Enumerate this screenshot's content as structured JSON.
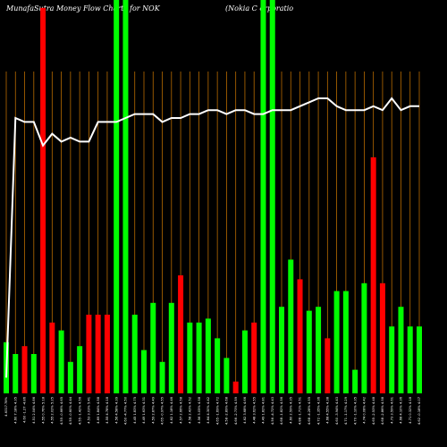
{
  "chart_data": {
    "type": "bar",
    "title_left": "MunafaSutra  Money Flow  Charts for NOK",
    "title_right": "(Nokia  C                                  orporatio",
    "ylim": [
      0,
      100
    ],
    "line_ylim": [
      0,
      100
    ],
    "colors": {
      "up": "#00ff00",
      "down": "#ff0000",
      "vline": "#b86b00",
      "line": "#ffffff",
      "background": "#000000"
    },
    "categories": [
      "4.6317.78%",
      "4.60 7.18% 4.35",
      "4.60 -1.27 -4.86",
      "4.51 2.04% 4.86",
      "4.55 0.76% 5.18",
      "4.55 2.02% 5.25",
      "4.55 -0.66% 4.65",
      "4.55 -0.60% 4.44",
      "4.55 -1.42% 4.56",
      "4.53 3.03% 5.41",
      "4.69 1.84% 4.58",
      "4.55 4.78% 4.18",
      "4.56 4.58% 4.39",
      "4.60 -4.77% 4.50",
      "4.45 1.83% 4.75",
      "4.49 1.63% 4.31",
      "4.59 2.87% 4.49",
      "4.65 -0.97% 4.55",
      "4.62 1.18% 4.46",
      "4.57 2.66% 4.58",
      "4.58 2.43% 4.52",
      "4.56 3.05% 4.58",
      "4.64 4.30% 4.42",
      "4.65 -1.69% 4.72",
      "4.58 -2.89% 4.68",
      "4.66 -2.73% 4.59",
      "4.62 3.68% 4.66",
      "4.48 3.62% 4.55",
      "4.49 1.82% 4.81",
      "4.56 -4.72% 4.43",
      "4.68 -1.82% 4.56",
      "4.60 2.59% 4.35",
      "4.88 -1.71% 4.51",
      "4.68 -4.28% 4.55",
      "4.72 -1.35% 4.36",
      "4.68 4.55% 4.38",
      "4.60 -3.94% 4.43",
      "4.71 -1.17% 4.29",
      "4.70 -1.10% 4.35",
      "4.74 0.08% 4.42",
      "4.65 -2.53% 4.48",
      "4.68 -2.86% 4.58",
      "4.73 3.59% 4.61",
      "4.68 4.10% 4.36",
      "4.71 0.32% 4.18",
      "4.62 -0.18% 4.07"
    ],
    "series": [
      {
        "values": [
          13,
          10,
          12,
          10,
          98,
          18,
          16,
          8,
          12,
          20,
          20,
          20,
          100,
          100,
          20,
          11,
          23,
          8,
          23,
          30,
          18,
          18,
          19,
          14,
          9,
          3,
          16,
          18,
          100,
          100,
          22,
          34,
          29,
          21,
          22,
          14,
          26,
          26,
          6,
          28,
          60,
          28,
          17,
          22,
          17,
          17
        ],
        "directions": [
          "up",
          "up",
          "down",
          "up",
          "down",
          "down",
          "up",
          "up",
          "up",
          "down",
          "down",
          "down",
          "up",
          "up",
          "up",
          "up",
          "up",
          "up",
          "up",
          "down",
          "up",
          "up",
          "up",
          "up",
          "up",
          "down",
          "up",
          "down",
          "up",
          "up",
          "up",
          "up",
          "down",
          "up",
          "up",
          "down",
          "up",
          "up",
          "up",
          "up",
          "down",
          "down",
          "up",
          "up",
          "up",
          "up"
        ]
      },
      {
        "values": [
          4,
          70,
          69,
          69,
          63,
          66,
          64,
          65,
          64,
          64,
          69,
          69,
          69,
          70,
          71,
          71,
          71,
          69,
          70,
          70,
          71,
          71,
          72,
          72,
          71,
          72,
          72,
          71,
          71,
          72,
          72,
          72,
          73,
          74,
          75,
          75,
          73,
          72,
          72,
          72,
          73,
          72,
          75,
          72,
          73,
          73
        ]
      }
    ]
  }
}
